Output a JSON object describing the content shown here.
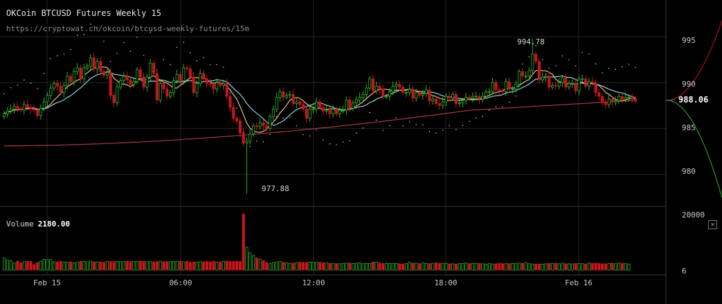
{
  "header": {
    "title": "OKCoin BTCUSD Futures Weekly 15",
    "url": "https://cryptowat.ch/okcoin/btcusd-weekly-futures/15m"
  },
  "price_axis": {
    "ticks": [
      "995",
      "990",
      "985",
      "980"
    ],
    "last_price": "988.06"
  },
  "volume_axis": {
    "ticks": [
      "20000",
      "6"
    ]
  },
  "volume_panel": {
    "label": "Volume",
    "value": "2180.00",
    "close_icon": "✕"
  },
  "annotations": {
    "high": "994.78",
    "low": "977.88"
  },
  "time_axis": {
    "ticks": [
      "Feb 15",
      "06:00",
      "12:00",
      "18:00",
      "Feb 16"
    ]
  },
  "colors": {
    "up": "#2bb52b",
    "down": "#c8161d",
    "ma_fast": "#f0c080",
    "ma_mid": "#8fd8e6",
    "ma_slow": "#a33a46",
    "sar": "#bfbfbf",
    "grid": "#262626"
  },
  "chart_data": {
    "type": "candlestick",
    "title": "OKCoin BTCUSD Futures Weekly 15",
    "interval": "15m",
    "x_ticks": [
      "Feb 15",
      "06:00",
      "12:00",
      "18:00",
      "Feb 16"
    ],
    "ylim": [
      976.5,
      999
    ],
    "y_ticks": [
      980,
      985,
      990,
      995
    ],
    "volume_ylim": [
      6,
      20000
    ],
    "last_price": 988.06,
    "annotated_high": 994.78,
    "annotated_low": 977.88,
    "closes": [
      986.6,
      986.9,
      987.1,
      987.4,
      987.2,
      987.0,
      987.6,
      987.3,
      987.1,
      987.0,
      986.4,
      987.2,
      987.9,
      988.6,
      989.4,
      989.9,
      989.6,
      988.9,
      989.7,
      990.7,
      990.1,
      991.2,
      991.6,
      990.4,
      991.6,
      991.8,
      992.7,
      991.5,
      992.3,
      991.2,
      990.8,
      991.1,
      988.6,
      987.8,
      989.5,
      990.2,
      990.7,
      990.3,
      989.8,
      990.1,
      991.4,
      990.6,
      989.5,
      990.6,
      992.1,
      991.0,
      988.1,
      989.9,
      989.3,
      988.5,
      988.9,
      990.2,
      990.9,
      990.2,
      991.6,
      991.5,
      990.6,
      988.9,
      989.9,
      991.0,
      990.4,
      989.9,
      989.8,
      989.3,
      990.0,
      989.7,
      989.9,
      988.5,
      987.3,
      986.1,
      985.8,
      984.5,
      983.4,
      983.6,
      984.4,
      985.3,
      985.2,
      985.6,
      985.3,
      985.0,
      986.3,
      987.1,
      988.4,
      989.0,
      988.4,
      988.6,
      988.7,
      987.7,
      987.9,
      987.6,
      987.1,
      986.1,
      987.1,
      987.1,
      987.9,
      987.3,
      986.9,
      987.0,
      986.6,
      987.1,
      986.6,
      987.0,
      987.0,
      988.1,
      987.2,
      987.8,
      988.1,
      988.4,
      988.7,
      989.4,
      990.4,
      989.1,
      989.6,
      989.3,
      988.5,
      988.5,
      989.0,
      989.6,
      989.8,
      989.5,
      988.9,
      988.9,
      989.3,
      988.3,
      988.9,
      988.6,
      988.8,
      989.2,
      988.0,
      988.2,
      987.7,
      987.5,
      987.9,
      988.5,
      988.3,
      988.7,
      987.7,
      987.8,
      988.0,
      988.4,
      988.3,
      988.5,
      988.5,
      988.2,
      988.5,
      989.0,
      989.0,
      990.0,
      989.2,
      989.1,
      989.0,
      990.1,
      989.3,
      989.3,
      989.8,
      991.2,
      990.7,
      990.7,
      991.3,
      993.1,
      992.3,
      990.3,
      990.6,
      990.7,
      989.5,
      989.7,
      989.6,
      990.0,
      990.5,
      989.5,
      989.9,
      989.9,
      989.1,
      990.4,
      990.4,
      989.6,
      990.1,
      990.0,
      988.9,
      988.5,
      987.8,
      987.6,
      988.2,
      987.9,
      988.0,
      988.5,
      988.2,
      988.4,
      988.4,
      988.2,
      988.0
    ],
    "volume": [
      4321,
      3564,
      3391,
      2500,
      3159,
      2587,
      3013,
      3085,
      3084,
      1999,
      2713,
      3207,
      3839,
      3662,
      3829,
      2950,
      2940,
      3093,
      2845,
      2810,
      2956,
      2600,
      2870,
      3130,
      3136,
      2941,
      3195,
      2926,
      2935,
      2862,
      2780,
      3151,
      3044,
      3004,
      3098,
      3022,
      3007,
      3179,
      3003,
      3103,
      3102,
      3225,
      3141,
      2983,
      3030,
      2930,
      3029,
      3176,
      3032,
      3025,
      3022,
      3035,
      3135,
      3210,
      2974,
      3136,
      2770,
      2862,
      2892,
      3037,
      2953,
      3078,
      2924,
      3218,
      2786,
      2961,
      3130,
      3200,
      3068,
      3080,
      3067,
      3072,
      20000,
      8200,
      6200,
      5200,
      4300,
      3900,
      3300,
      2700,
      2300,
      2700,
      2900,
      3100,
      2800,
      2600,
      2400,
      2500,
      2700,
      2800,
      2750,
      2700,
      2900,
      2800,
      2750,
      2800,
      2600,
      2550,
      2500,
      2300,
      2350,
      2250,
      2400,
      2500,
      2500,
      2400,
      2450,
      2600,
      2300,
      2350,
      2400,
      2900,
      2850,
      2500,
      2350,
      2450,
      2400,
      2450,
      2400,
      2250,
      2200,
      2350,
      2850,
      2500,
      2450,
      2350,
      2550,
      2350,
      2300,
      2400,
      2600,
      2450,
      2450,
      2400,
      2250,
      2250,
      2150,
      2300,
      2350,
      2500,
      2350,
      2450,
      2400,
      2400,
      2250,
      2150,
      2300,
      2200,
      2250,
      2450,
      2300,
      2300,
      2300,
      2350,
      2300,
      2500,
      2450,
      2650,
      2250,
      2200,
      2150,
      2200,
      2150,
      2250,
      2350,
      2400,
      2450,
      2250,
      2500,
      2300,
      2250,
      2200,
      2400,
      2350,
      2300,
      2200,
      2550,
      2400,
      2500,
      2350,
      2250,
      2250,
      2400,
      2500,
      2300,
      2550,
      2450,
      2300,
      2180
    ]
  }
}
